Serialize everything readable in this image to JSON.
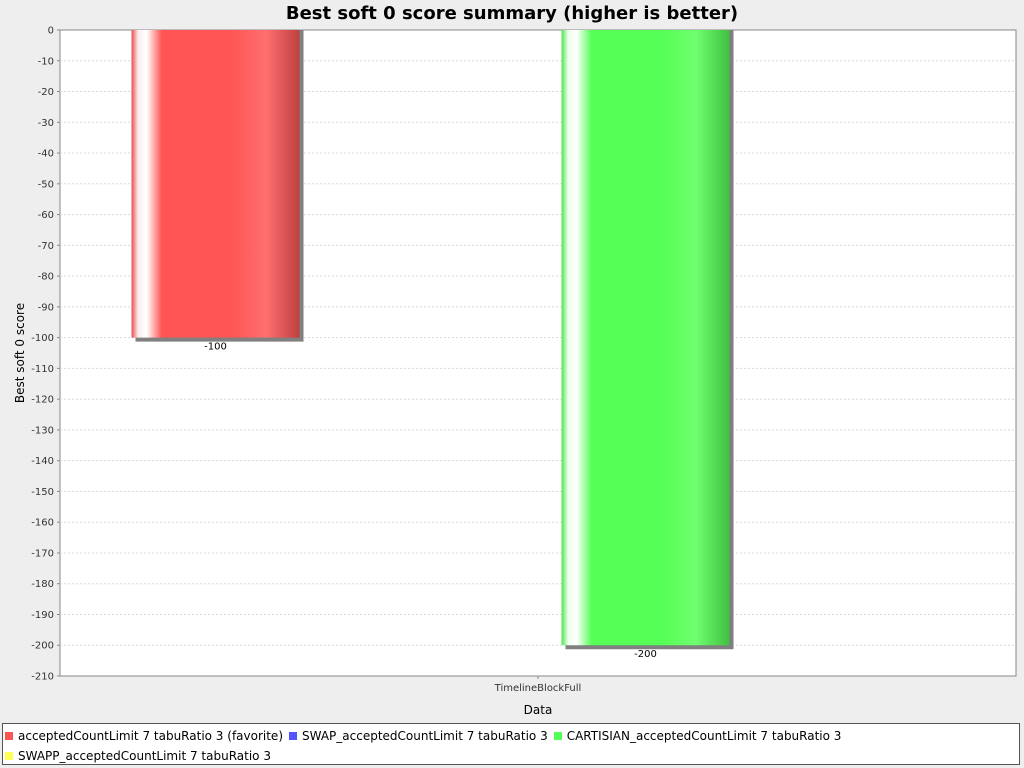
{
  "chart_data": {
    "type": "bar",
    "title": "Best soft 0 score summary (higher is better)",
    "xlabel": "Data",
    "ylabel": "Best soft 0 score",
    "categories": [
      "TimelineBlockFull"
    ],
    "ylim": [
      -210,
      0
    ],
    "yticks": [
      0,
      -10,
      -20,
      -30,
      -40,
      -50,
      -60,
      -70,
      -80,
      -90,
      -100,
      -110,
      -120,
      -130,
      -140,
      -150,
      -160,
      -170,
      -180,
      -190,
      -200,
      -210
    ],
    "grid": true,
    "legend_position": "bottom",
    "series": [
      {
        "name": "acceptedCountLimit 7 tabuRatio 3 (favorite)",
        "values": [
          -100
        ],
        "value_labels": [
          "-100"
        ],
        "color": "#ff5555",
        "shown": true
      },
      {
        "name": "SWAP_acceptedCountLimit 7 tabuRatio 3",
        "values": [
          null
        ],
        "value_labels": [
          ""
        ],
        "color": "#5555ff",
        "shown": false
      },
      {
        "name": "CARTISIAN_acceptedCountLimit 7 tabuRatio 3",
        "values": [
          -200
        ],
        "value_labels": [
          "-200"
        ],
        "color": "#55ff55",
        "shown": true
      },
      {
        "name": "SWAPP_acceptedCountLimit 7 tabuRatio 3",
        "values": [
          null
        ],
        "value_labels": [
          ""
        ],
        "color": "#ffff55",
        "shown": false
      }
    ]
  }
}
